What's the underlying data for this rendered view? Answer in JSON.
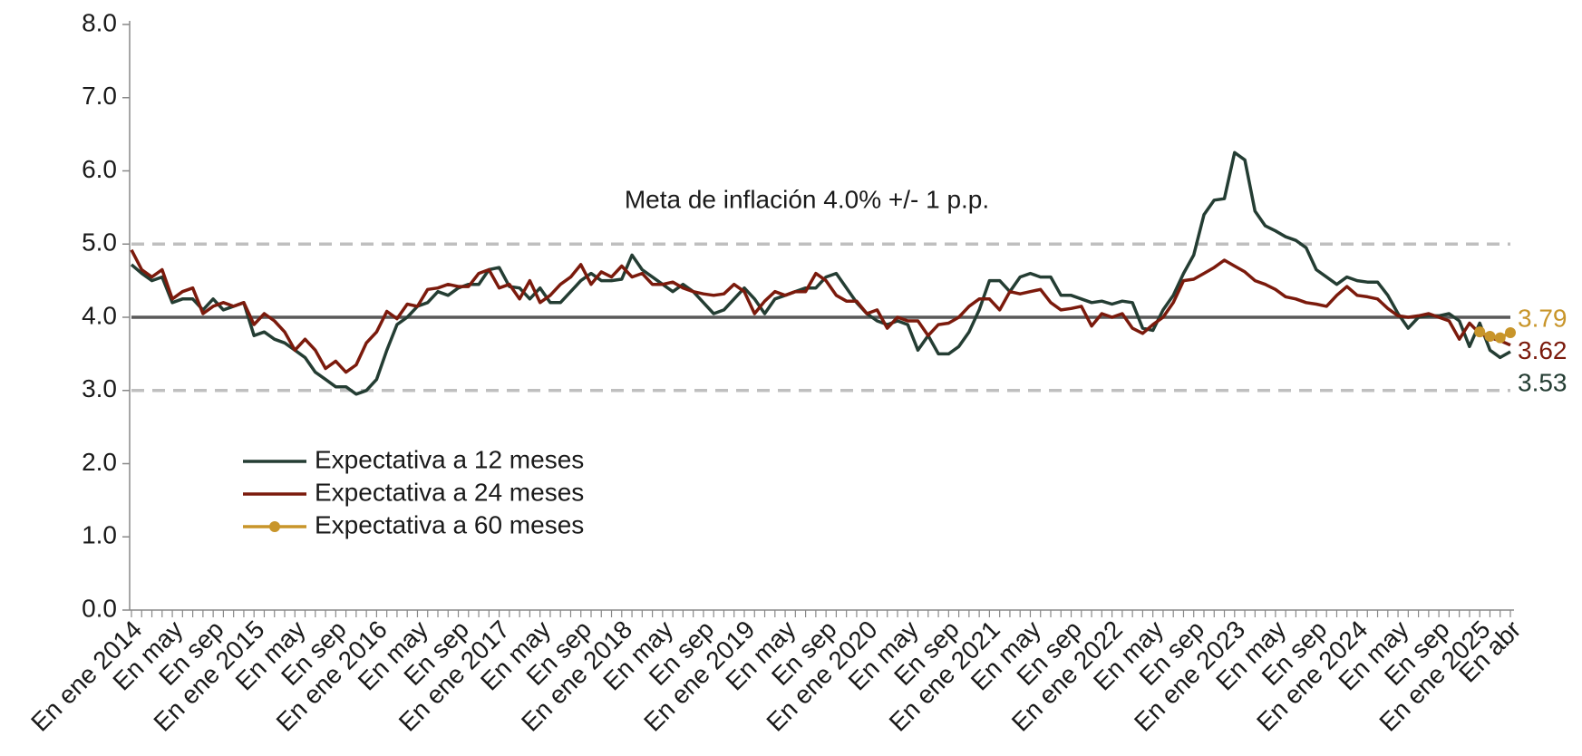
{
  "chart_data": {
    "type": "line",
    "annotations": [
      "Meta de inflación 4.0% +/- 1 p.p."
    ],
    "categories": [
      "En ene 2014",
      null,
      null,
      null,
      "En may",
      null,
      null,
      null,
      "En sep",
      null,
      null,
      null,
      "En ene 2015",
      null,
      null,
      null,
      "En may",
      null,
      null,
      null,
      "En sep",
      null,
      null,
      null,
      "En ene 2016",
      null,
      null,
      null,
      "En may",
      null,
      null,
      null,
      "En sep",
      null,
      null,
      null,
      "En ene 2017",
      null,
      null,
      null,
      "En may",
      null,
      null,
      null,
      "En sep",
      null,
      null,
      null,
      "En ene 2018",
      null,
      null,
      null,
      "En may",
      null,
      null,
      null,
      "En sep",
      null,
      null,
      null,
      "En ene 2019",
      null,
      null,
      null,
      "En may",
      null,
      null,
      null,
      "En sep",
      null,
      null,
      null,
      "En ene 2020",
      null,
      null,
      null,
      "En may",
      null,
      null,
      null,
      "En sep",
      null,
      null,
      null,
      "En ene 2021",
      null,
      null,
      null,
      "En may",
      null,
      null,
      null,
      "En sep",
      null,
      null,
      null,
      "En ene 2022",
      null,
      null,
      null,
      "En may",
      null,
      null,
      null,
      "En sep",
      null,
      null,
      null,
      "En ene 2023",
      null,
      null,
      null,
      "En may",
      null,
      null,
      null,
      "En sep",
      null,
      null,
      null,
      "En ene 2024",
      null,
      null,
      null,
      "En may",
      null,
      null,
      null,
      "En sep",
      null,
      null,
      null,
      "En ene 2025",
      null,
      null,
      "En abr"
    ],
    "series": [
      {
        "name": "Expectativa a 12 meses",
        "color": "#243d33",
        "markers": false,
        "values": [
          4.72,
          4.6,
          4.5,
          4.55,
          4.2,
          4.25,
          4.25,
          4.1,
          4.25,
          4.1,
          4.15,
          4.2,
          3.75,
          3.8,
          3.7,
          3.65,
          3.55,
          3.45,
          3.25,
          3.15,
          3.05,
          3.05,
          2.95,
          3.0,
          3.15,
          3.55,
          3.9,
          4.0,
          4.15,
          4.2,
          4.35,
          4.3,
          4.4,
          4.45,
          4.45,
          4.65,
          4.68,
          4.42,
          4.4,
          4.25,
          4.4,
          4.2,
          4.2,
          4.35,
          4.5,
          4.6,
          4.5,
          4.5,
          4.52,
          4.85,
          4.65,
          4.55,
          4.45,
          4.35,
          4.45,
          4.35,
          4.2,
          4.05,
          4.1,
          4.25,
          4.4,
          4.25,
          4.05,
          4.25,
          4.3,
          4.35,
          4.4,
          4.4,
          4.55,
          4.6,
          4.4,
          4.2,
          4.05,
          3.95,
          3.9,
          3.95,
          3.9,
          3.55,
          3.75,
          3.5,
          3.5,
          3.6,
          3.8,
          4.1,
          4.5,
          4.5,
          4.35,
          4.55,
          4.6,
          4.55,
          4.55,
          4.3,
          4.3,
          4.25,
          4.2,
          4.22,
          4.18,
          4.22,
          4.2,
          3.85,
          3.82,
          4.1,
          4.3,
          4.6,
          4.85,
          5.4,
          5.6,
          5.62,
          6.25,
          6.15,
          5.45,
          5.25,
          5.18,
          5.1,
          5.05,
          4.95,
          4.65,
          4.55,
          4.45,
          4.55,
          4.5,
          4.48,
          4.48,
          4.3,
          4.05,
          3.85,
          4.0,
          4.02,
          4.02,
          4.05,
          3.95,
          3.6,
          3.92,
          3.55,
          3.45,
          3.53
        ]
      },
      {
        "name": "Expectativa a 24 meses",
        "color": "#7b1a0c",
        "markers": false,
        "values": [
          4.92,
          4.65,
          4.55,
          4.65,
          4.25,
          4.35,
          4.4,
          4.05,
          4.15,
          4.2,
          4.15,
          4.2,
          3.9,
          4.05,
          3.95,
          3.8,
          3.55,
          3.7,
          3.55,
          3.3,
          3.4,
          3.25,
          3.35,
          3.65,
          3.8,
          4.08,
          3.98,
          4.18,
          4.15,
          4.38,
          4.4,
          4.45,
          4.42,
          4.42,
          4.6,
          4.65,
          4.4,
          4.45,
          4.25,
          4.5,
          4.2,
          4.3,
          4.45,
          4.55,
          4.72,
          4.45,
          4.62,
          4.55,
          4.7,
          4.55,
          4.6,
          4.45,
          4.45,
          4.48,
          4.4,
          4.35,
          4.32,
          4.3,
          4.32,
          4.45,
          4.35,
          4.05,
          4.22,
          4.35,
          4.3,
          4.35,
          4.35,
          4.6,
          4.5,
          4.3,
          4.22,
          4.22,
          4.05,
          4.1,
          3.85,
          4.0,
          3.95,
          3.95,
          3.75,
          3.9,
          3.92,
          4.0,
          4.15,
          4.25,
          4.25,
          4.1,
          4.35,
          4.32,
          4.35,
          4.38,
          4.2,
          4.1,
          4.12,
          4.15,
          3.88,
          4.05,
          4.0,
          4.05,
          3.85,
          3.78,
          3.9,
          4.0,
          4.2,
          4.5,
          4.52,
          4.6,
          4.68,
          4.78,
          4.7,
          4.62,
          4.5,
          4.45,
          4.38,
          4.28,
          4.25,
          4.2,
          4.18,
          4.15,
          4.3,
          4.42,
          4.3,
          4.28,
          4.25,
          4.12,
          4.02,
          4.0,
          4.02,
          4.05,
          4.0,
          3.95,
          3.7,
          3.92,
          3.78,
          3.72,
          3.68,
          3.62
        ]
      },
      {
        "name": "Expectativa a 60 meses",
        "color": "#c8952a",
        "markers": true,
        "values": [
          null,
          null,
          null,
          null,
          null,
          null,
          null,
          null,
          null,
          null,
          null,
          null,
          null,
          null,
          null,
          null,
          null,
          null,
          null,
          null,
          null,
          null,
          null,
          null,
          null,
          null,
          null,
          null,
          null,
          null,
          null,
          null,
          null,
          null,
          null,
          null,
          null,
          null,
          null,
          null,
          null,
          null,
          null,
          null,
          null,
          null,
          null,
          null,
          null,
          null,
          null,
          null,
          null,
          null,
          null,
          null,
          null,
          null,
          null,
          null,
          null,
          null,
          null,
          null,
          null,
          null,
          null,
          null,
          null,
          null,
          null,
          null,
          null,
          null,
          null,
          null,
          null,
          null,
          null,
          null,
          null,
          null,
          null,
          null,
          null,
          null,
          null,
          null,
          null,
          null,
          null,
          null,
          null,
          null,
          null,
          null,
          null,
          null,
          null,
          null,
          null,
          null,
          null,
          null,
          null,
          null,
          null,
          null,
          null,
          null,
          null,
          null,
          null,
          null,
          null,
          null,
          null,
          null,
          null,
          null,
          null,
          null,
          null,
          null,
          null,
          null,
          null,
          null,
          null,
          null,
          null,
          null,
          3.8,
          3.74,
          3.72,
          3.79
        ]
      }
    ],
    "reference_lines": [
      {
        "value": 5.0,
        "style": "dashed",
        "color": "#bfbfbf"
      },
      {
        "value": 4.0,
        "style": "solid",
        "color": "#595959"
      },
      {
        "value": 3.0,
        "style": "dashed",
        "color": "#bfbfbf"
      }
    ],
    "ylim": [
      0,
      8
    ],
    "yticks": [
      {
        "value": 0,
        "label": "0.0"
      },
      {
        "value": 1,
        "label": "1.0"
      },
      {
        "value": 2,
        "label": "2.0"
      },
      {
        "value": 3,
        "label": "3.0"
      },
      {
        "value": 4,
        "label": "4.0"
      },
      {
        "value": 5,
        "label": "5.0"
      },
      {
        "value": 6,
        "label": "6.0"
      },
      {
        "value": 7,
        "label": "7.0"
      },
      {
        "value": 8,
        "label": "8.0"
      }
    ],
    "grid": false,
    "legend": "lower left",
    "end_labels": true
  }
}
